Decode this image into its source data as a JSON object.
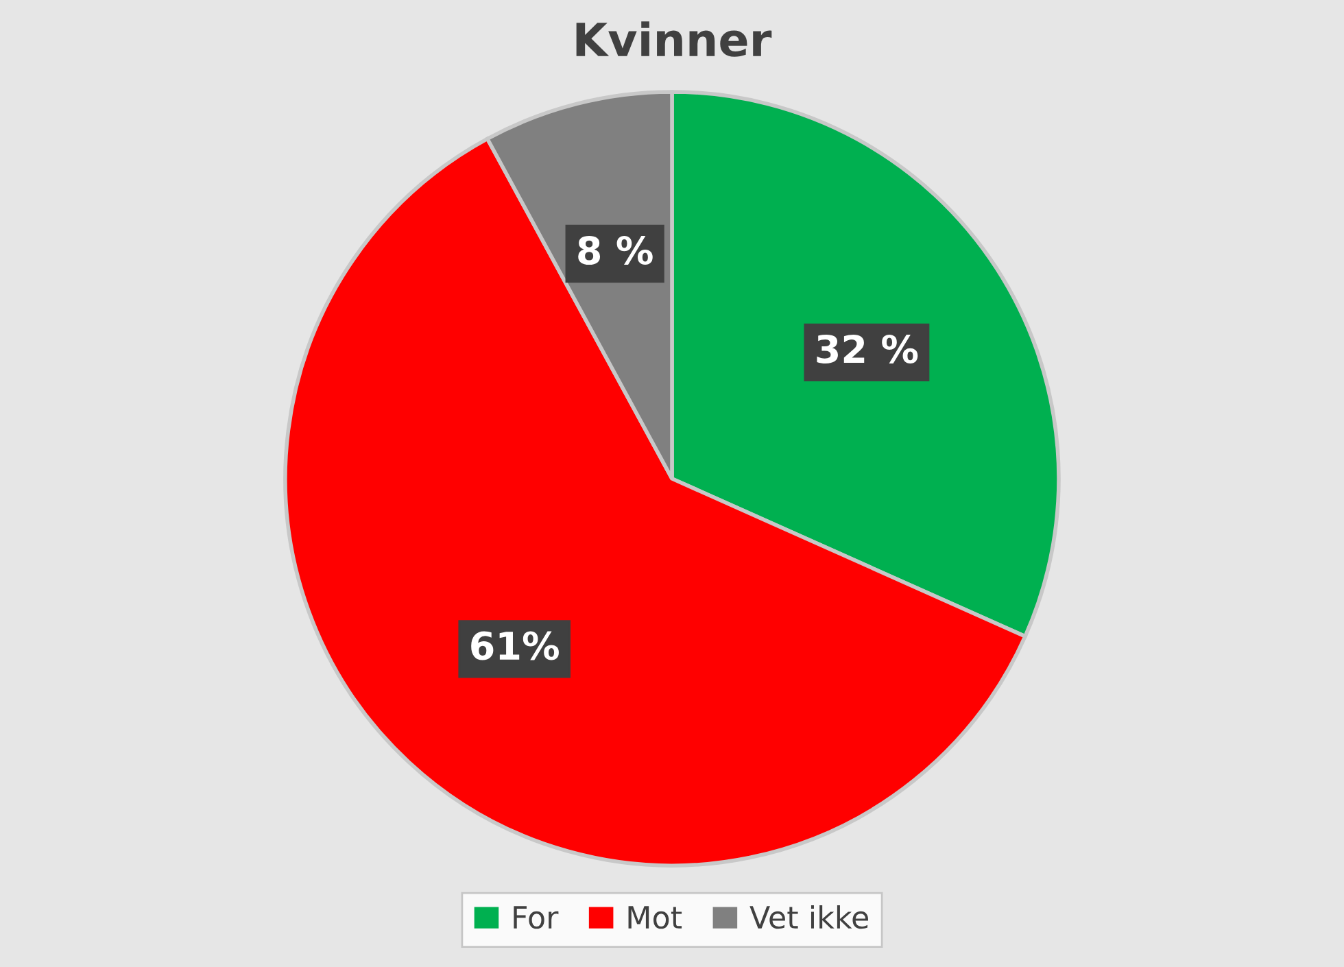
{
  "chart_data": {
    "type": "pie",
    "title": "Kvinner",
    "categories": [
      "For",
      "Mot",
      "Vet ikke"
    ],
    "values": [
      32,
      61,
      8
    ],
    "value_labels": [
      "32 %",
      "61%",
      "8 %"
    ],
    "colors": [
      "#00b050",
      "#ff0000",
      "#808080"
    ],
    "legend": "bottom"
  }
}
